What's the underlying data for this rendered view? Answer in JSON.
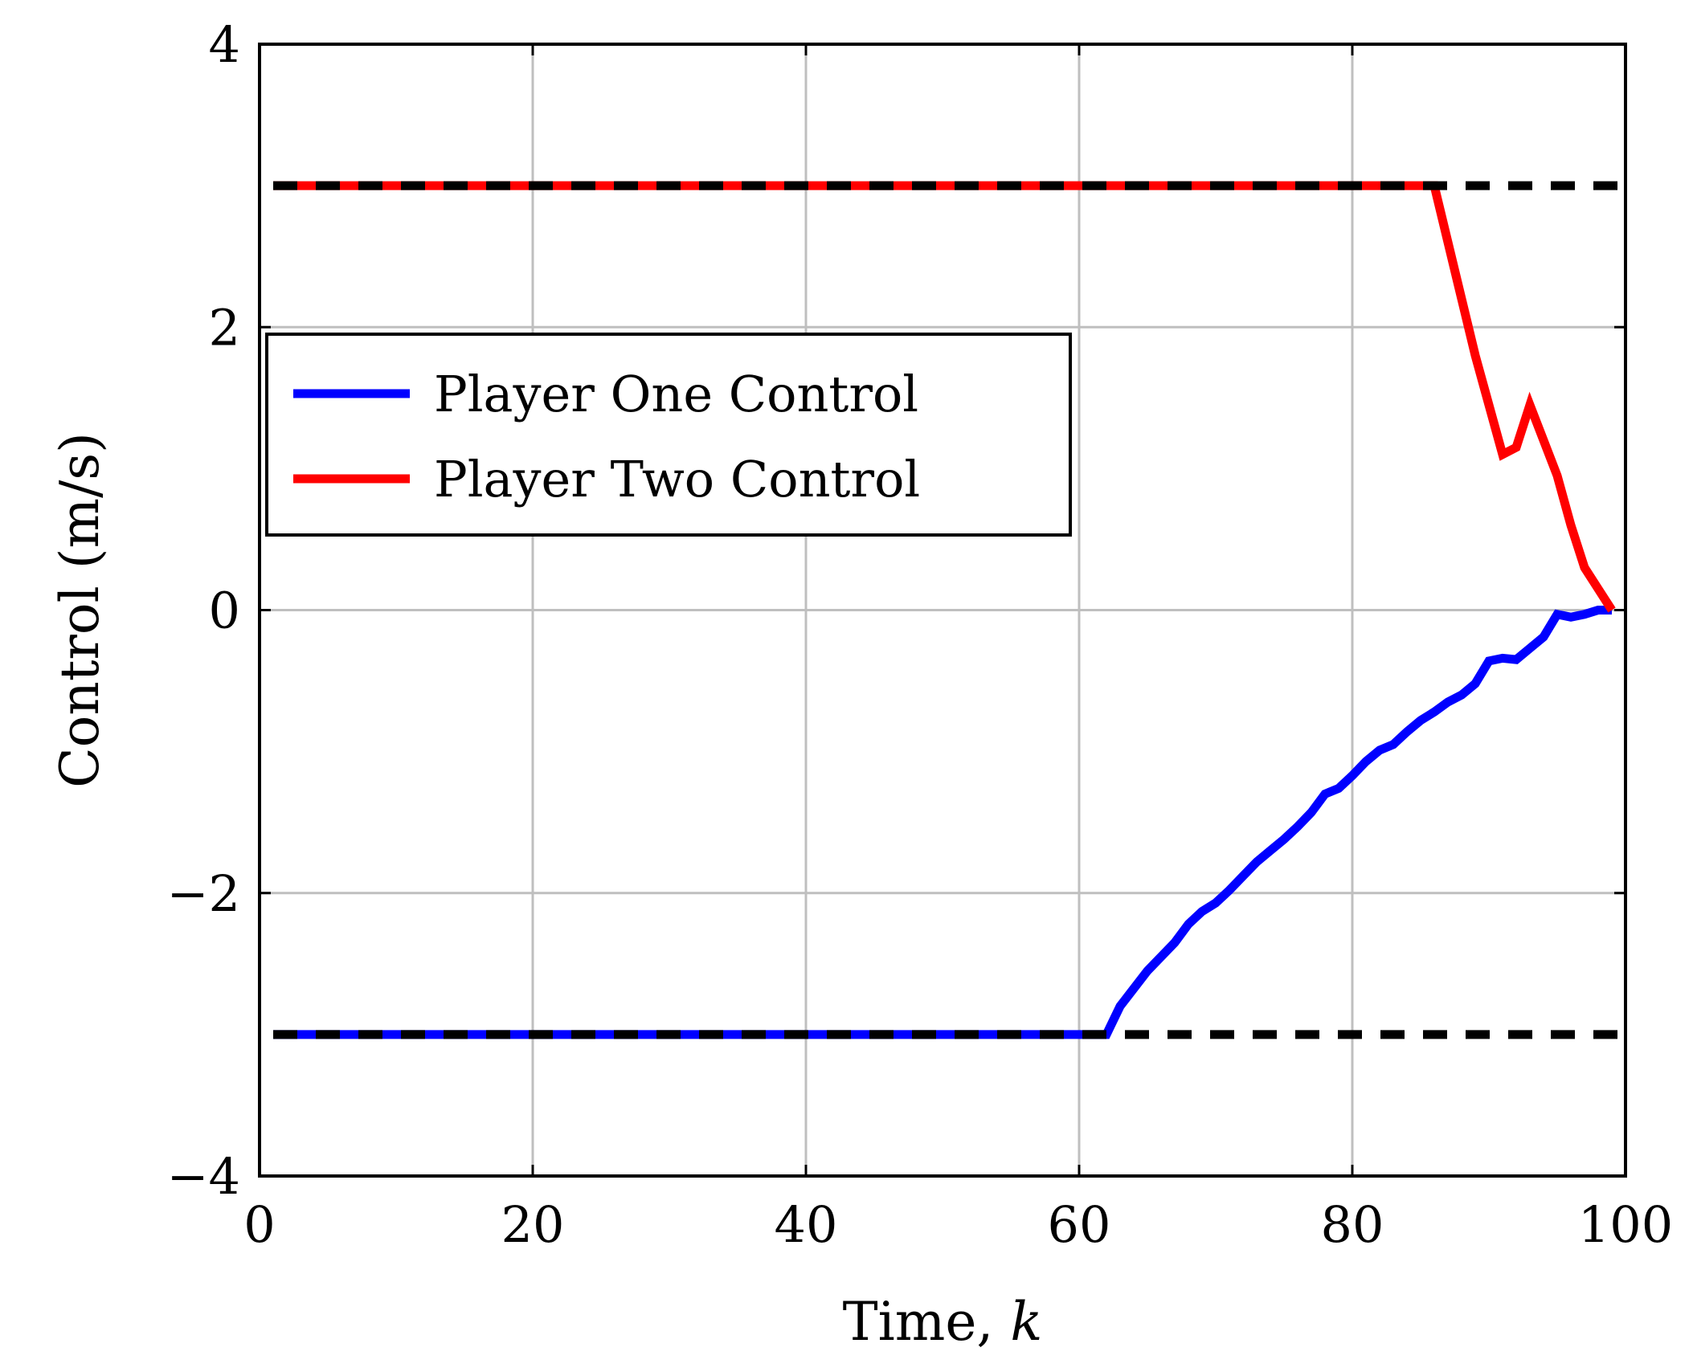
{
  "chart_data": {
    "type": "line",
    "title": "",
    "xlabel": "Time, ",
    "xlabel_var": "k",
    "ylabel": "Control (m/s)",
    "xlim": [
      0,
      100
    ],
    "ylim": [
      -4,
      4
    ],
    "xticks": [
      0,
      20,
      40,
      60,
      80,
      100
    ],
    "xtick_labels": [
      "0",
      "20",
      "40",
      "60",
      "80",
      "100"
    ],
    "yticks": [
      -4,
      -2,
      0,
      2,
      4
    ],
    "ytick_labels": [
      "−4",
      "−2",
      "0",
      "2",
      "4"
    ],
    "grid": true,
    "legend_position": "center-left",
    "series": [
      {
        "name": "Player One Control",
        "color": "#0000ff",
        "x": [
          1,
          62,
          63,
          65,
          67,
          68,
          69,
          70,
          71,
          72,
          73,
          74,
          75,
          76,
          77,
          78,
          79,
          80,
          81,
          82,
          83,
          84,
          85,
          86,
          87,
          88,
          89,
          90,
          91,
          92,
          93,
          94,
          95,
          96,
          97,
          98,
          99
        ],
        "y": [
          -3,
          -3,
          -2.8,
          -2.55,
          -2.35,
          -2.22,
          -2.13,
          -2.07,
          -1.98,
          -1.88,
          -1.78,
          -1.7,
          -1.62,
          -1.53,
          -1.43,
          -1.3,
          -1.26,
          -1.17,
          -1.07,
          -0.99,
          -0.95,
          -0.86,
          -0.78,
          -0.72,
          -0.65,
          -0.6,
          -0.52,
          -0.36,
          -0.34,
          -0.35,
          -0.27,
          -0.19,
          -0.03,
          -0.05,
          -0.03,
          0,
          0
        ]
      },
      {
        "name": "Player Two Control",
        "color": "#ff0000",
        "x": [
          1,
          86,
          87,
          88,
          89,
          90,
          91,
          92,
          93,
          94,
          95,
          96,
          97,
          98,
          99
        ],
        "y": [
          3,
          3,
          2.6,
          2.2,
          1.8,
          1.45,
          1.1,
          1.15,
          1.45,
          1.2,
          0.95,
          0.6,
          0.3,
          0.15,
          0
        ]
      },
      {
        "name": "",
        "color": "#000000",
        "style": "dashed",
        "x": [
          1,
          100
        ],
        "y": [
          3,
          3
        ]
      },
      {
        "name": "",
        "color": "#000000",
        "style": "dashed",
        "x": [
          1,
          100
        ],
        "y": [
          -3,
          -3
        ]
      }
    ]
  }
}
